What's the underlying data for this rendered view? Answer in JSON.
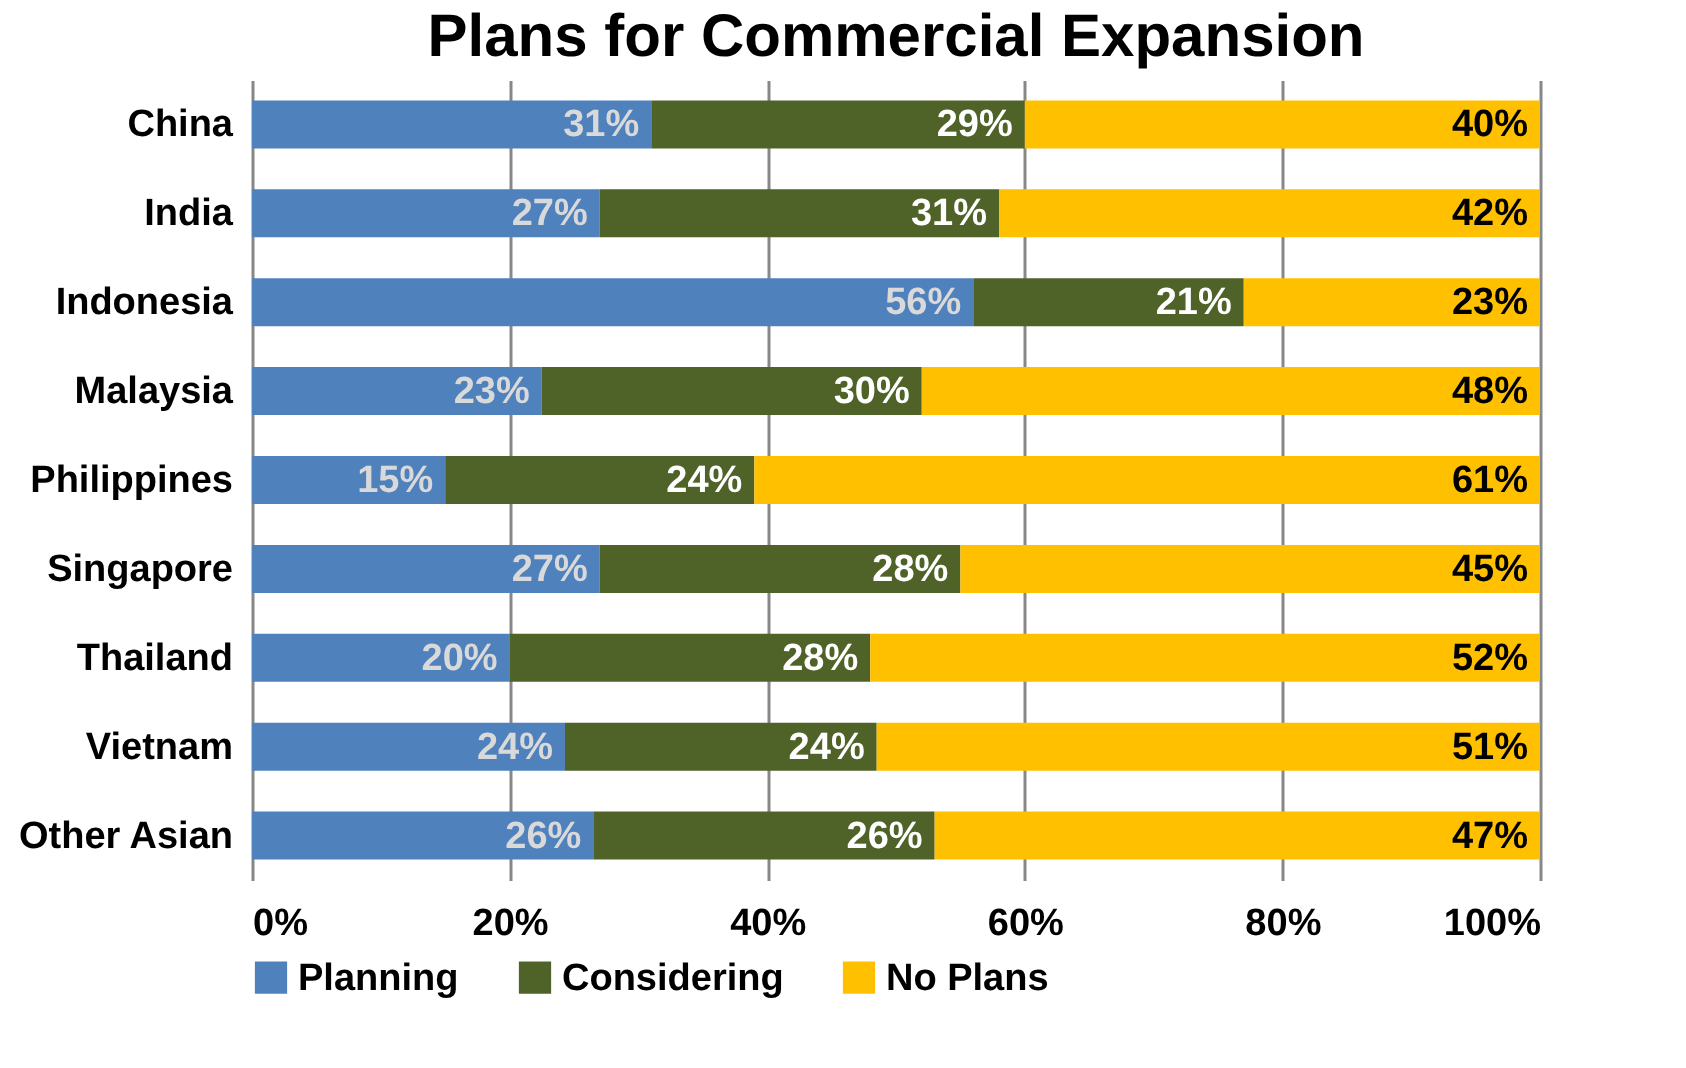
{
  "chart_data": {
    "type": "bar",
    "title": "Plans for Commercial Expansion",
    "orientation": "horizontal",
    "stacked": true,
    "categories": [
      "China",
      "India",
      "Indonesia",
      "Malaysia",
      "Philippines",
      "Singapore",
      "Thailand",
      "Vietnam",
      "Other Asian"
    ],
    "series": [
      {
        "name": "Planning",
        "color": "#4f81bd",
        "values": [
          31,
          27,
          56,
          22.5,
          15,
          27,
          20,
          24.3,
          26.5
        ],
        "value_labels": [
          "31%",
          "27%",
          "56%",
          "23%",
          "15%",
          "27%",
          "20%",
          "24%",
          "26%"
        ]
      },
      {
        "name": "Considering",
        "color": "#4f6228",
        "values": [
          29,
          31,
          21,
          29.5,
          24,
          28,
          28,
          24.2,
          26.5
        ],
        "value_labels": [
          "29%",
          "31%",
          "21%",
          "30%",
          "24%",
          "28%",
          "28%",
          "24%",
          "26%"
        ]
      },
      {
        "name": "No Plans",
        "color": "#ffc000",
        "values": [
          40,
          42,
          23,
          48,
          61,
          45,
          52,
          51.5,
          47
        ],
        "value_labels": [
          "40%",
          "42%",
          "23%",
          "48%",
          "61%",
          "45%",
          "52%",
          "51%",
          "47%"
        ]
      }
    ],
    "xlim": [
      0,
      100
    ],
    "xticks": [
      {
        "value": 0,
        "label": "0%"
      },
      {
        "value": 20,
        "label": "20%"
      },
      {
        "value": 40,
        "label": "40%"
      },
      {
        "value": 60,
        "label": "60%"
      },
      {
        "value": 80,
        "label": "80%"
      },
      {
        "value": 100,
        "label": "100%"
      }
    ],
    "grid": "x",
    "legend": "bottom"
  }
}
